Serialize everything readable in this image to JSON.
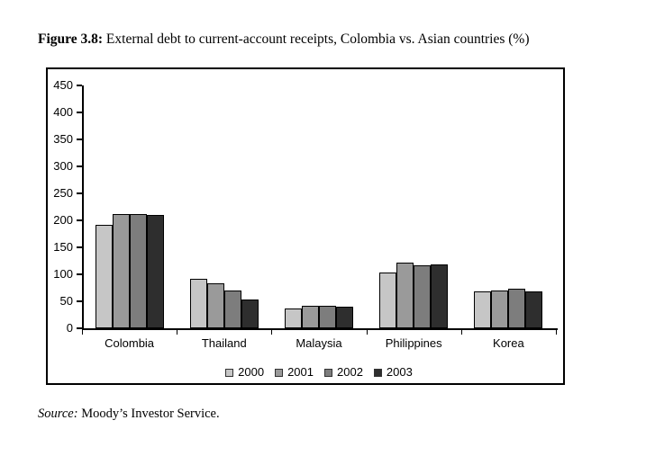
{
  "title": {
    "label": "Figure 3.8:",
    "text": "External debt to current-account receipts, Colombia vs. Asian countries (%)"
  },
  "source": {
    "label": "Source:",
    "text": "Moody’s Investor Service."
  },
  "chart_data": {
    "type": "bar",
    "title": "Figure 3.8: External debt to current-account receipts, Colombia vs. Asian countries (%)",
    "categories": [
      "Colombia",
      "Thailand",
      "Malaysia",
      "Philippines",
      "Korea"
    ],
    "series": [
      {
        "name": "2000",
        "color": "#c6c6c6",
        "values": [
          192,
          92,
          36,
          104,
          68
        ]
      },
      {
        "name": "2001",
        "color": "#9a9a9a",
        "values": [
          212,
          83,
          41,
          121,
          70
        ]
      },
      {
        "name": "2002",
        "color": "#7d7d7d",
        "values": [
          212,
          70,
          41,
          116,
          73
        ]
      },
      {
        "name": "2003",
        "color": "#2e2e2e",
        "values": [
          210,
          53,
          40,
          119,
          68
        ]
      }
    ],
    "xlabel": "",
    "ylabel": "",
    "ylim": [
      0,
      450
    ],
    "y_ticks": [
      0,
      50,
      100,
      150,
      200,
      250,
      300,
      350,
      400,
      450
    ],
    "grid": false,
    "legend_position": "bottom-center",
    "axis_color": "#000000"
  }
}
